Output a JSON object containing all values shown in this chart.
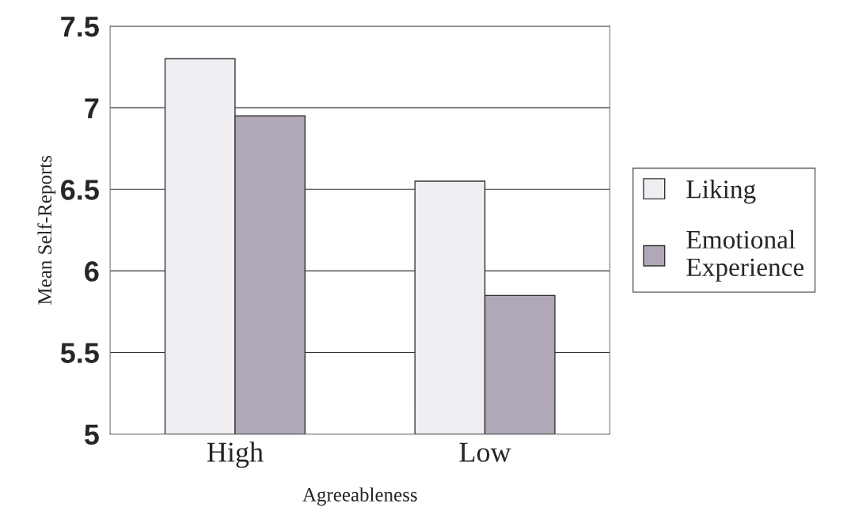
{
  "chart_data": {
    "type": "bar",
    "xlabel": "Agreeableness",
    "ylabel": "Mean Self-Reports",
    "categories": [
      "High",
      "Low"
    ],
    "series": [
      {
        "name": "Liking",
        "color": "#f0eef2",
        "values": [
          7.3,
          6.55
        ]
      },
      {
        "name": "Emotional\nExperience",
        "color": "#b0a8b8",
        "values": [
          6.95,
          5.85
        ]
      }
    ],
    "ylim": [
      5,
      7.5
    ],
    "yticks": [
      5,
      5.5,
      6,
      6.5,
      7,
      7.5
    ],
    "grid": "y",
    "legend": "right"
  }
}
